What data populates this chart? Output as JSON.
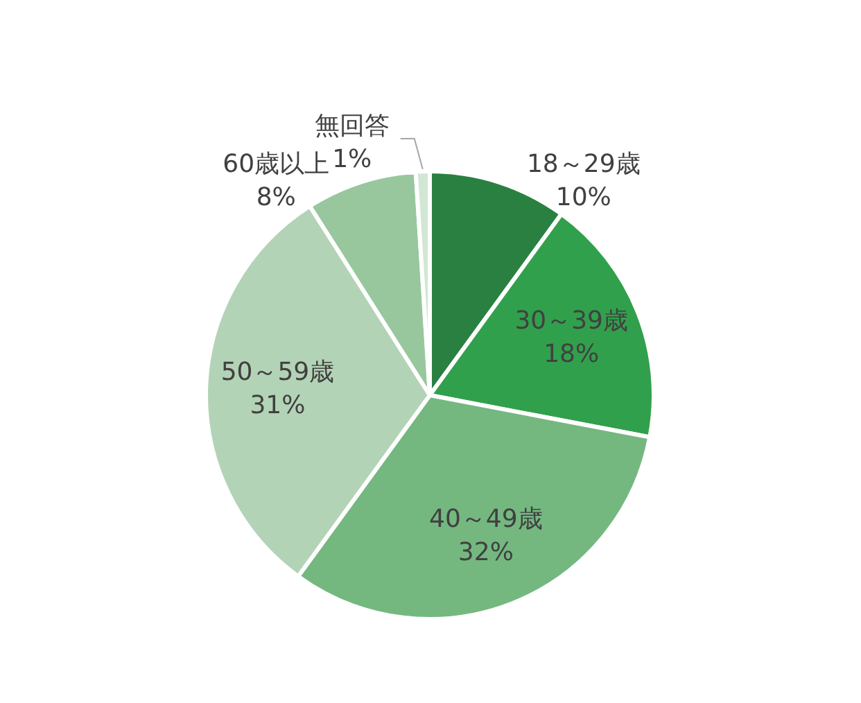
{
  "chart_data": {
    "type": "pie",
    "categories": [
      "18～29歳",
      "30～39歳",
      "40～49歳",
      "50～59歳",
      "60歳以上",
      "無回答"
    ],
    "values": [
      10,
      18,
      32,
      31,
      8,
      1
    ],
    "value_labels": [
      "10%",
      "18%",
      "32%",
      "31%",
      "8%",
      "1%"
    ],
    "colors": [
      "#2a8040",
      "#31a04c",
      "#74b880",
      "#b3d3b6",
      "#98c79e",
      "#d2e6d4"
    ],
    "legend": false
  }
}
